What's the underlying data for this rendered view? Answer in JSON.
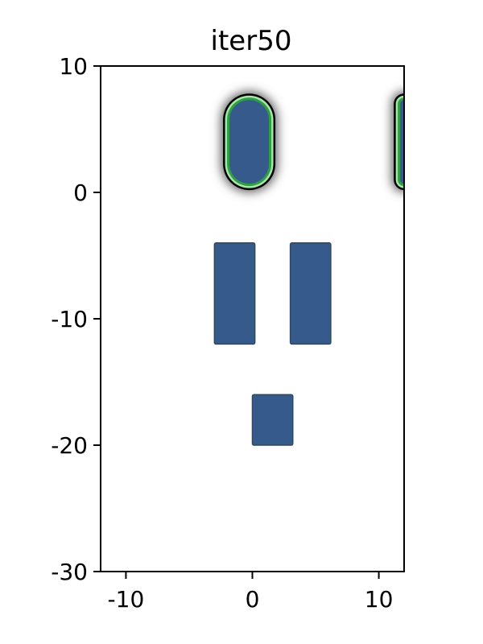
{
  "chart_data": {
    "type": "heatmap",
    "title": "iter50",
    "xlabel": "",
    "ylabel": "",
    "xlim": [
      -12,
      12
    ],
    "ylim": [
      -30,
      10
    ],
    "x_ticks": [
      -10,
      0,
      10
    ],
    "y_ticks": [
      10,
      0,
      -10,
      -20,
      -30
    ],
    "x_tick_labels": [
      "-10",
      "0",
      "10"
    ],
    "y_tick_labels": [
      "10",
      "0",
      "-10",
      "-20",
      "-30"
    ],
    "grid": false,
    "colors": {
      "obstacle": "#375a8c",
      "obstacle_edge": "#2c4a5c",
      "contour_outer": "#000000",
      "contour_mid": "#2f9e44",
      "contour_inner": "#a6e6a6",
      "background": "#ffffff"
    },
    "regions": [
      {
        "kind": "rounded-obstacle-with-contour",
        "x": [
          -2,
          1.5
        ],
        "y": [
          0.5,
          7.5
        ]
      },
      {
        "kind": "rounded-obstacle-with-contour",
        "x": [
          11.5,
          12.5
        ],
        "y": [
          0.5,
          7.5
        ]
      },
      {
        "kind": "rectangle",
        "x": [
          -3,
          0.2
        ],
        "y": [
          -12,
          -4
        ]
      },
      {
        "kind": "rectangle",
        "x": [
          3,
          6.2
        ],
        "y": [
          -12,
          -4
        ]
      },
      {
        "kind": "rectangle",
        "x": [
          0,
          3.2
        ],
        "y": [
          -20,
          -16
        ]
      }
    ]
  }
}
